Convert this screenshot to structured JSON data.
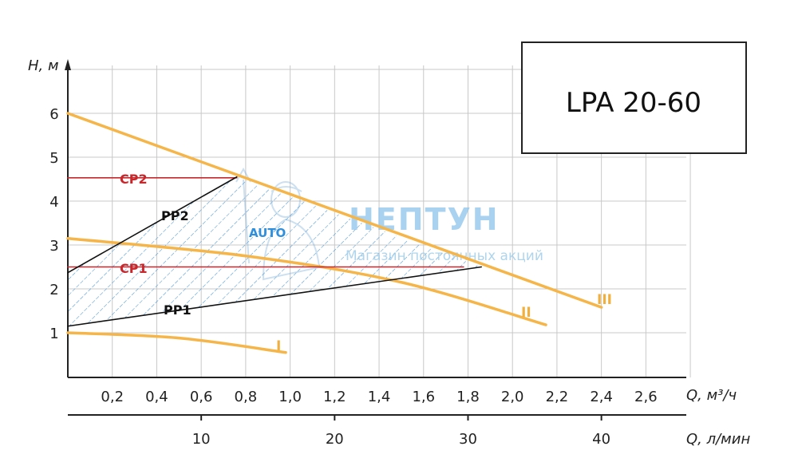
{
  "chart_data": {
    "type": "line",
    "title": "LPA 20-60",
    "ylabel": "H, м",
    "xlabel": "Q, м³/ч",
    "xlabel2": "Q, л/мин",
    "xlim": [
      0,
      2.8
    ],
    "ylim": [
      0,
      7
    ],
    "y_ticks": [
      1,
      2,
      3,
      4,
      5,
      6
    ],
    "x_ticks": [
      0.2,
      0.4,
      0.6,
      0.8,
      1.0,
      1.2,
      1.4,
      1.6,
      1.8,
      2.0,
      2.2,
      2.4,
      2.6
    ],
    "x_tick_labels": [
      "0,2",
      "0,4",
      "0,6",
      "0,8",
      "1,0",
      "1,2",
      "1,4",
      "1,6",
      "1,8",
      "2,0",
      "2,2",
      "2,4",
      "2,6"
    ],
    "x2_ticks": [
      10,
      20,
      30,
      40
    ],
    "x2_tick_labels": [
      "10",
      "20",
      "30",
      "40"
    ],
    "grid": true,
    "series": [
      {
        "name": "I",
        "color": "#f5b548",
        "x": [
          0,
          0.5,
          0.98
        ],
        "y": [
          1.0,
          0.88,
          0.55
        ]
      },
      {
        "name": "II",
        "color": "#f5b548",
        "x": [
          0,
          0.8,
          1.5,
          2.15
        ],
        "y": [
          3.15,
          2.75,
          2.15,
          1.18
        ]
      },
      {
        "name": "III",
        "color": "#f5b548",
        "x": [
          0,
          2.4
        ],
        "y": [
          6.0,
          1.58
        ]
      },
      {
        "name": "CP2",
        "color": "#c8282c",
        "x": [
          0,
          0.76
        ],
        "y": [
          4.53,
          4.53
        ]
      },
      {
        "name": "CP1",
        "color": "#c8282c",
        "x": [
          0,
          1.78
        ],
        "y": [
          2.5,
          2.5
        ]
      },
      {
        "name": "PP2",
        "color": "#111111",
        "x": [
          0,
          0.76
        ],
        "y": [
          2.37,
          4.55
        ]
      },
      {
        "name": "PP1",
        "color": "#111111",
        "x": [
          0,
          1.86
        ],
        "y": [
          1.15,
          2.5
        ]
      }
    ],
    "region": {
      "name": "working area",
      "x": [
        0,
        0.76,
        1.86,
        0
      ],
      "y": [
        2.37,
        4.55,
        2.5,
        1.15
      ]
    }
  },
  "labels": {
    "cp2": "CP2",
    "cp1": "CP1",
    "pp2": "PP2",
    "pp1": "PP1",
    "curve_1": "I",
    "curve_2": "II",
    "curve_3": "III"
  },
  "title_box": {
    "text": "LPA 20-60"
  },
  "watermark": {
    "brand": "НЕПТУН",
    "tagline": "Магазин постоянных акций",
    "logo_text": "AUTO"
  }
}
